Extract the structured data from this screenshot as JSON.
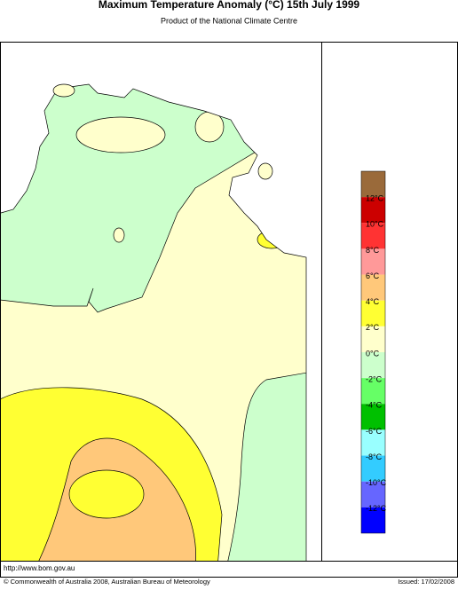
{
  "header": {
    "title": "Maximum Temperature Anomaly (°C)  15th July 1999",
    "subtitle": "Product of the National Climate Centre"
  },
  "legend": {
    "colors": [
      "#9a6a3a",
      "#cc0000",
      "#ff3333",
      "#ff9999",
      "#ffc87a",
      "#ffff33",
      "#ffffcc",
      "#ccffcc",
      "#66ff66",
      "#00c000",
      "#99ffff",
      "#33ccff",
      "#6666ff",
      "#0000ff"
    ],
    "labels": [
      "12°C",
      "10°C",
      "8°C",
      "6°C",
      "4°C",
      "2°C",
      "0°C",
      "-2°C",
      "-4°C",
      "-6°C",
      "-8°C",
      "-10°C",
      "-12°C"
    ]
  },
  "footer": {
    "url": "http://www.bom.gov.au",
    "copyright": "© Commonwealth of Australia 2008, Australian Bureau of Meteorology",
    "issued": "Issued: 17/02/2008"
  }
}
